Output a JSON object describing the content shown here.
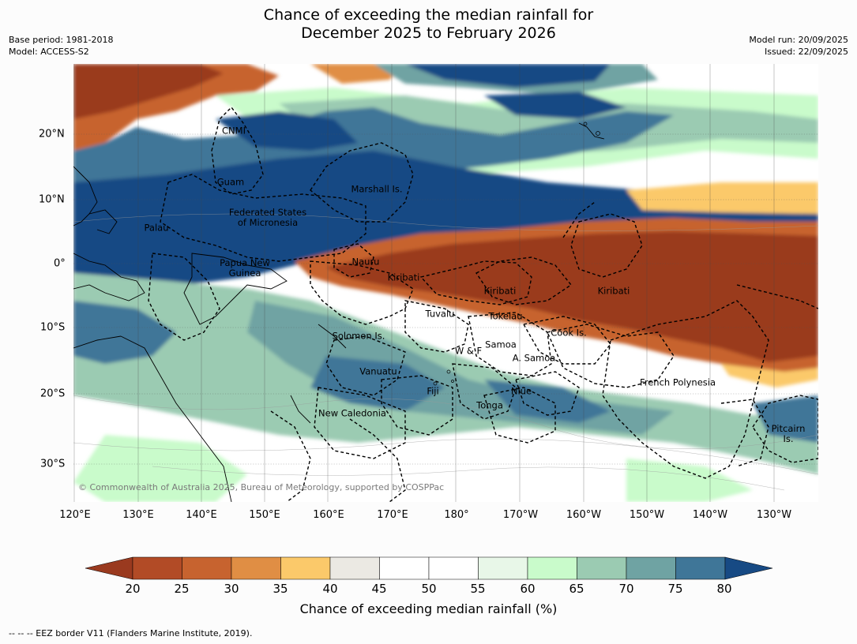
{
  "title": {
    "line1": "Chance of exceeding the median rainfall for",
    "line2": "December 2025 to February 2026"
  },
  "meta": {
    "base_period": "Base period: 1981-2018",
    "model": "Model: ACCESS-S2",
    "model_run": "Model run: 20/09/2025",
    "issued": "Issued: 22/09/2025"
  },
  "map": {
    "lat_labels": [
      "20°N",
      "10°N",
      "0°",
      "10°S",
      "20°S",
      "30°S"
    ],
    "lon_labels": [
      "120°E",
      "130°E",
      "140°E",
      "150°E",
      "160°E",
      "170°E",
      "180°",
      "170°W",
      "160°W",
      "150°W",
      "140°W",
      "130°W"
    ],
    "places": {
      "cnmi": "CNMI",
      "guam": "Guam",
      "marshall": "Marshall Is.",
      "fsm_1": "Federated States",
      "fsm_2": "of Micronesia",
      "palau": "Palau",
      "png_1": "Papua New",
      "png_2": "Guinea",
      "nauru": "Nauru",
      "kiribati_w": "Kiribati",
      "kiribati_c": "Kiribati",
      "kiribati_e": "Kiribati",
      "tuvalu": "Tuvalu",
      "tokelau": "Tokelau",
      "cook": "Cook Is.",
      "solomon": "Solomon Is.",
      "wf": "W & F",
      "samoa": "Samoa",
      "asamoa": "A. Samoa",
      "vanuatu": "Vanuatu",
      "fiji": "Fiji",
      "niue": "Niue",
      "tonga": "Tonga",
      "french_polynesia": "French Polynesia",
      "new_caledonia": "New Caledonia",
      "pitcairn_1": "Pitcairn",
      "pitcairn_2": "Is."
    },
    "credit": "© Commonwealth of Australia 2025, Bureau of Meteorology, supported by COSPPac"
  },
  "legend": {
    "title": "Chance of exceeding median rainfall (%)",
    "ticks": [
      "20",
      "25",
      "30",
      "35",
      "40",
      "45",
      "50",
      "55",
      "60",
      "65",
      "70",
      "75",
      "80"
    ],
    "colors": [
      "#9a3a1f",
      "#b24b26",
      "#c7632f",
      "#e08e44",
      "#fbc96a",
      "#ebe9e3",
      "#ffffff",
      "#ffffff",
      "#e8f7e8",
      "#c9fbcb",
      "#9bcbb2",
      "#6fa3a3",
      "#3f7698",
      "#174a84"
    ]
  },
  "footnote": "--  --  -- EEZ border V11 (Flanders Marine Institute, 2019)."
}
